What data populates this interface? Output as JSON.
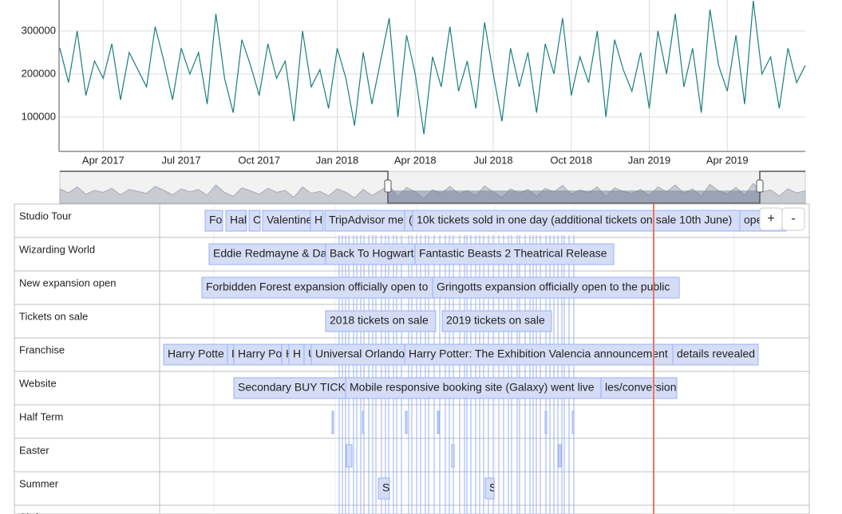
{
  "chart_data": {
    "type": "line",
    "categories": [
      null,
      null,
      null,
      null,
      null,
      "Apr 2017",
      null,
      null,
      null,
      null,
      null,
      null,
      null,
      null,
      "Jul 2017",
      null,
      null,
      null,
      null,
      null,
      null,
      null,
      null,
      "Oct 2017",
      null,
      null,
      null,
      null,
      null,
      null,
      null,
      null,
      "Jan 2018",
      null,
      null,
      null,
      null,
      null,
      null,
      null,
      null,
      "Apr 2018",
      null,
      null,
      null,
      null,
      null,
      null,
      null,
      null,
      "Jul 2018",
      null,
      null,
      null,
      null,
      null,
      null,
      null,
      null,
      "Oct 2018",
      null,
      null,
      null,
      null,
      null,
      null,
      null,
      null,
      "Jan 2019",
      null,
      null,
      null,
      null,
      null,
      null,
      null,
      null,
      "Apr 2019",
      null,
      null,
      null,
      null,
      null,
      null,
      null,
      null,
      null
    ],
    "values": [
      260000,
      180000,
      300000,
      150000,
      230000,
      190000,
      270000,
      140000,
      250000,
      210000,
      170000,
      310000,
      230000,
      140000,
      260000,
      200000,
      250000,
      130000,
      340000,
      190000,
      110000,
      280000,
      220000,
      150000,
      270000,
      190000,
      230000,
      90000,
      300000,
      170000,
      210000,
      120000,
      260000,
      190000,
      80000,
      250000,
      130000,
      230000,
      330000,
      100000,
      290000,
      200000,
      60000,
      240000,
      170000,
      310000,
      160000,
      230000,
      120000,
      320000,
      200000,
      90000,
      260000,
      170000,
      250000,
      110000,
      270000,
      200000,
      330000,
      150000,
      240000,
      180000,
      300000,
      100000,
      280000,
      210000,
      160000,
      250000,
      120000,
      300000,
      200000,
      340000,
      170000,
      260000,
      110000,
      350000,
      220000,
      160000,
      290000,
      130000,
      370000,
      200000,
      240000,
      120000,
      260000,
      180000,
      220000
    ],
    "color": "#1a7f7a",
    "ylim": [
      20000,
      372000
    ],
    "yticks": [
      100000,
      200000,
      300000
    ],
    "grid": true
  },
  "timeline": {
    "buttons": [
      "+",
      "-"
    ],
    "groups": [
      {
        "label": "Studio Tour",
        "items": [
          "Fo",
          "Hal",
          "C",
          "Valentine",
          "H",
          "TripAdvisor me",
          "(",
          "10k tickets sold in one day (additional tickets on sale 10th June)",
          "ope"
        ]
      },
      {
        "label": "Wizarding World",
        "items": [
          "Eddie Redmayne & Da",
          "Back To Hogwarts",
          "Fantastic Beasts 2 Theatrical Release"
        ]
      },
      {
        "label": "New expansion open",
        "items": [
          "Forbidden Forest expansion officially open to",
          "Gringotts expansion officially open to the public"
        ]
      },
      {
        "label": "Tickets on sale",
        "items": [
          "2018 tickets on sale",
          "2019 tickets on sale"
        ]
      },
      {
        "label": "Franchise",
        "items": [
          "Harry Potte",
          "H",
          "Harry Po",
          "H",
          "H",
          "U",
          "Universal Orlando",
          "Harry Potter: The Exhibition Valencia announcement",
          "details revealed"
        ]
      },
      {
        "label": "Website",
        "items": [
          "Secondary BUY TICK",
          "Mobile responsive booking site (Galaxy) went live",
          "les/conversion"
        ]
      },
      {
        "label": "Half Term",
        "items": []
      },
      {
        "label": "Easter",
        "items": []
      },
      {
        "label": "Summer",
        "items": [
          "S",
          "S"
        ]
      },
      {
        "label": "Christmas",
        "items": []
      }
    ]
  }
}
